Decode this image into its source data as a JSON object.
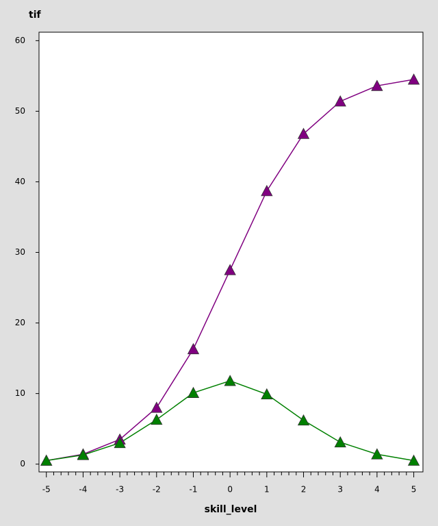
{
  "chart_data": {
    "type": "line",
    "y_label": "tif",
    "x_label": "skill_level",
    "x": [
      -5,
      -4,
      -3,
      -2,
      -1,
      0,
      1,
      2,
      3,
      4,
      5
    ],
    "series": [
      {
        "color": "#800080",
        "values": [
          0.5,
          1.4,
          3.5,
          8.0,
          16.3,
          27.5,
          38.7,
          46.8,
          51.4,
          53.6,
          54.5
        ]
      },
      {
        "color": "#008000",
        "values": [
          0.5,
          1.3,
          3.0,
          6.3,
          10.1,
          11.8,
          9.9,
          6.2,
          3.1,
          1.4,
          0.5
        ]
      }
    ],
    "xlim": [
      -5.2,
      5.25
    ],
    "ylim": [
      -1.1,
      61.2
    ],
    "xticks": [
      -5,
      -4,
      -3,
      -2,
      -1,
      0,
      1,
      2,
      3,
      4,
      5
    ],
    "xminorticks": [
      -4.8,
      -4.6,
      -4.4,
      -4.2,
      -3.8,
      -3.6,
      -3.4,
      -3.2,
      -2.8,
      -2.6,
      -2.4,
      -2.2,
      -1.8,
      -1.6,
      -1.4,
      -1.2,
      -0.8,
      -0.6,
      -0.4,
      -0.2,
      0.2,
      0.4,
      0.6,
      0.8,
      1.2,
      1.4,
      1.6,
      1.8,
      2.2,
      2.4,
      2.6,
      2.8,
      3.2,
      3.4,
      3.6,
      3.8,
      4.2,
      4.4,
      4.6,
      4.8
    ],
    "yticks": [
      0,
      10,
      20,
      30,
      40,
      50,
      60
    ],
    "marker": "triangle"
  }
}
